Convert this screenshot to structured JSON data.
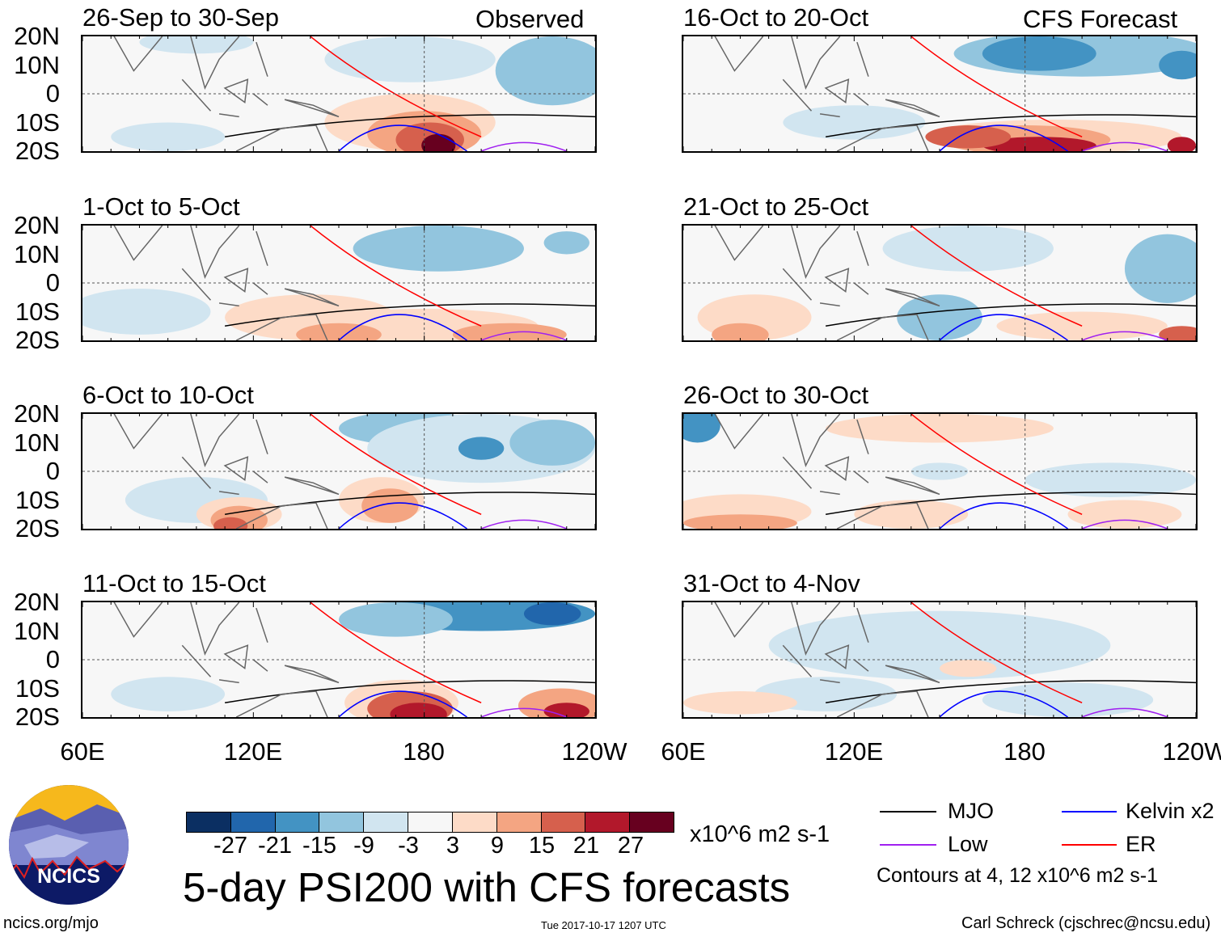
{
  "figure": {
    "title": "5-day PSI200 with CFS forecasts",
    "units_label": "x10^6 m2 s-1",
    "website": "ncics.org/mjo",
    "timestamp": "Tue 2017-10-17 1207 UTC",
    "author": "Carl Schreck (cjschrec@ncsu.edu)",
    "logo_text": "NCICS"
  },
  "columns": {
    "observed_label": "Observed",
    "forecast_label": "CFS Forecast"
  },
  "chart_data": {
    "type": "heatmap",
    "description_variable": "200-hPa streamfunction anomaly, 5-day means",
    "lat_ticks": [
      "20N",
      "10N",
      "0",
      "10S",
      "20S"
    ],
    "lon_ticks": [
      "60E",
      "120E",
      "180",
      "120W"
    ],
    "lat_range": [
      -20,
      20
    ],
    "lon_range": [
      60,
      240
    ],
    "panels": [
      {
        "title": "26-Sep to 30-Sep",
        "source": "Observed"
      },
      {
        "title": "1-Oct to 5-Oct",
        "source": "Observed"
      },
      {
        "title": "6-Oct to 10-Oct",
        "source": "Observed"
      },
      {
        "title": "11-Oct to 15-Oct",
        "source": "Observed"
      },
      {
        "title": "16-Oct to 20-Oct",
        "source": "CFS Forecast"
      },
      {
        "title": "21-Oct to 25-Oct",
        "source": "CFS Forecast"
      },
      {
        "title": "26-Oct to 30-Oct",
        "source": "CFS Forecast"
      },
      {
        "title": "31-Oct to 4-Nov",
        "source": "CFS Forecast"
      }
    ],
    "colorbar": {
      "labels": [
        "-27",
        "-21",
        "-15",
        "-9",
        "-3",
        "3",
        "9",
        "15",
        "21",
        "27"
      ],
      "colors": [
        "#0b2f62",
        "#2166ac",
        "#4393c3",
        "#92c5de",
        "#d1e5f0",
        "#f7f7f7",
        "#fddbc7",
        "#f4a582",
        "#d6604d",
        "#b2182b",
        "#67001f"
      ]
    },
    "legend": [
      {
        "label": "MJO",
        "color": "#000000"
      },
      {
        "label": "Kelvin x2",
        "color": "#0000ff"
      },
      {
        "label": "Low",
        "color": "#a020f0"
      },
      {
        "label": "ER",
        "color": "#ff0000"
      }
    ],
    "contour_note": "Contours at 4, 12 x10^6 m2 s-1"
  }
}
